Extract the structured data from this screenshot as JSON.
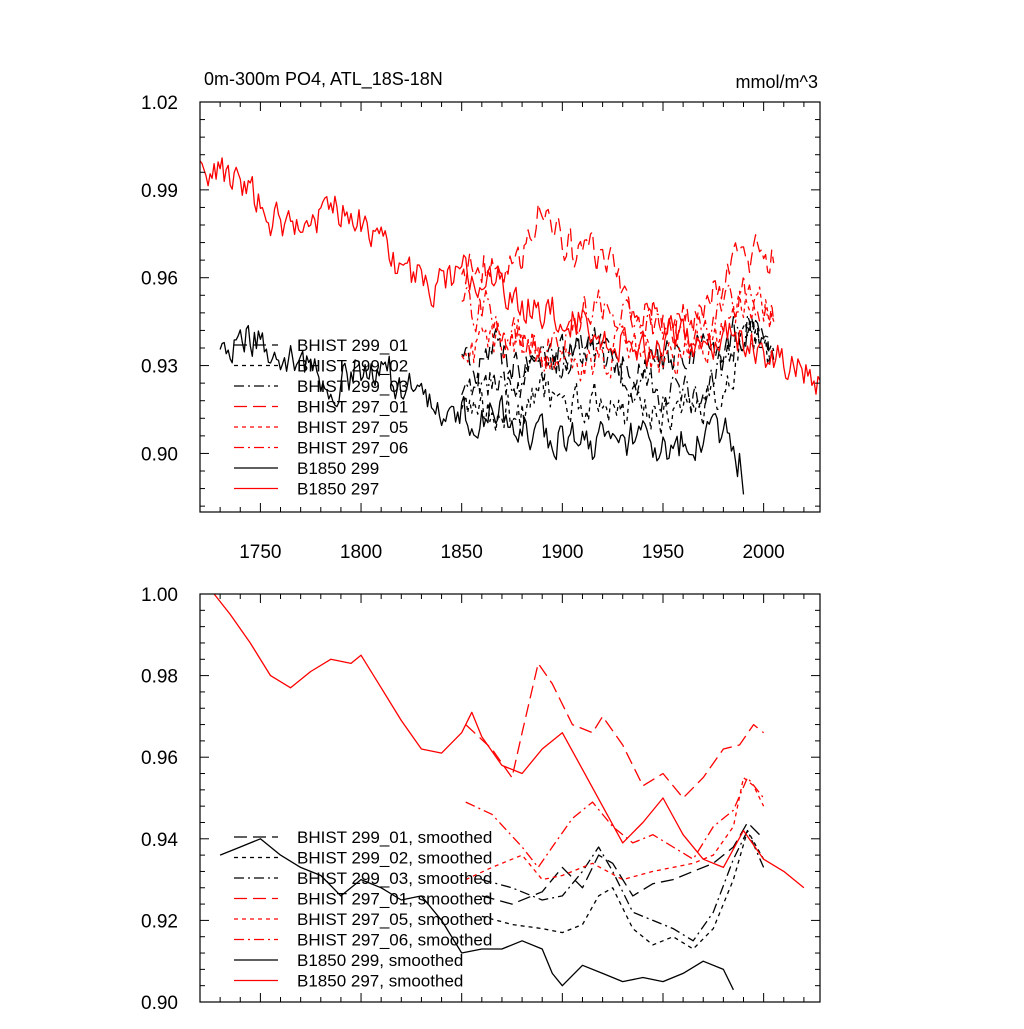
{
  "colors": {
    "black": "#000000",
    "red": "#ff0000"
  },
  "chart_data": [
    {
      "type": "line",
      "title": "0m-300m PO4, ATL_18S-18N",
      "units": "mmol/m^3",
      "xlabel": "",
      "ylabel": "",
      "xlim": [
        1720,
        2028
      ],
      "ylim": [
        0.88,
        1.02
      ],
      "xticks": [
        1750,
        1800,
        1850,
        1900,
        1950,
        2000
      ],
      "xtick_labels": [
        "1750",
        "1800",
        "1850",
        "1900",
        "1950",
        "2000"
      ],
      "yticks": [
        0.9,
        0.93,
        0.96,
        0.99,
        1.02
      ],
      "ytick_labels": [
        "0.90",
        "0.93",
        "0.96",
        "0.99",
        "1.02"
      ],
      "legend_position": "bottom-left",
      "series": [
        {
          "name": "BHIST 299_01",
          "color": "#000000",
          "dash": "long-dash",
          "noise": 0.006,
          "x": [
            1850,
            1865,
            1880,
            1890,
            1900,
            1915,
            1930,
            1945,
            1960,
            1975,
            1985,
            1992,
            2005
          ],
          "values": [
            0.928,
            0.935,
            0.93,
            0.927,
            0.932,
            0.938,
            0.93,
            0.932,
            0.934,
            0.935,
            0.94,
            0.945,
            0.935
          ]
        },
        {
          "name": "BHIST 299_02",
          "color": "#000000",
          "dash": "short-dash",
          "noise": 0.006,
          "x": [
            1850,
            1865,
            1880,
            1890,
            1900,
            1915,
            1930,
            1945,
            1960,
            1975,
            1985,
            1992,
            2005
          ],
          "values": [
            0.918,
            0.912,
            0.914,
            0.92,
            0.918,
            0.917,
            0.915,
            0.913,
            0.912,
            0.92,
            0.93,
            0.942,
            0.932
          ]
        },
        {
          "name": "BHIST 299_03",
          "color": "#000000",
          "dash": "dash-dot",
          "noise": 0.006,
          "x": [
            1850,
            1865,
            1880,
            1890,
            1900,
            1915,
            1930,
            1945,
            1960,
            1975,
            1985,
            1992,
            2005
          ],
          "values": [
            0.922,
            0.925,
            0.924,
            0.93,
            0.93,
            0.935,
            0.925,
            0.922,
            0.918,
            0.925,
            0.935,
            0.945,
            0.932
          ]
        },
        {
          "name": "BHIST 297_01",
          "color": "#ff0000",
          "dash": "long-dash",
          "noise": 0.006,
          "x": [
            1850,
            1860,
            1870,
            1880,
            1888,
            1895,
            1905,
            1915,
            1925,
            1935,
            1945,
            1955,
            1965,
            1975,
            1985,
            1992,
            2005
          ],
          "values": [
            0.962,
            0.965,
            0.96,
            0.965,
            0.985,
            0.98,
            0.97,
            0.97,
            0.965,
            0.95,
            0.95,
            0.945,
            0.948,
            0.955,
            0.965,
            0.968,
            0.965
          ]
        },
        {
          "name": "BHIST 297_05",
          "color": "#ff0000",
          "dash": "short-dash",
          "noise": 0.006,
          "x": [
            1850,
            1865,
            1880,
            1890,
            1900,
            1915,
            1930,
            1945,
            1960,
            1975,
            1985,
            1992,
            2005
          ],
          "values": [
            0.932,
            0.937,
            0.94,
            0.935,
            0.93,
            0.932,
            0.935,
            0.932,
            0.935,
            0.938,
            0.945,
            0.955,
            0.945
          ]
        },
        {
          "name": "BHIST 297_06",
          "color": "#ff0000",
          "dash": "dash-dot",
          "noise": 0.006,
          "x": [
            1850,
            1865,
            1880,
            1890,
            1900,
            1915,
            1930,
            1945,
            1960,
            1975,
            1985,
            1992,
            2005
          ],
          "values": [
            0.952,
            0.948,
            0.938,
            0.935,
            0.94,
            0.95,
            0.948,
            0.942,
            0.94,
            0.945,
            0.95,
            0.955,
            0.945
          ]
        },
        {
          "name": "B1850 299",
          "color": "#000000",
          "dash": "solid",
          "noise": 0.006,
          "x": [
            1730,
            1745,
            1760,
            1775,
            1790,
            1805,
            1820,
            1835,
            1845,
            1860,
            1875,
            1885,
            1895,
            1910,
            1925,
            1940,
            1955,
            1970,
            1982,
            1988,
            1990
          ],
          "values": [
            0.935,
            0.94,
            0.935,
            0.928,
            0.925,
            0.93,
            0.925,
            0.92,
            0.912,
            0.915,
            0.912,
            0.908,
            0.905,
            0.904,
            0.903,
            0.905,
            0.902,
            0.906,
            0.905,
            0.898,
            0.886
          ]
        },
        {
          "name": "B1850 297",
          "color": "#ff0000",
          "dash": "solid",
          "noise": 0.0055,
          "x": [
            1720,
            1730,
            1745,
            1760,
            1775,
            1790,
            1805,
            1820,
            1835,
            1850,
            1865,
            1880,
            1895,
            1910,
            1925,
            1940,
            1955,
            1970,
            1985,
            2000,
            2015,
            2028
          ],
          "values": [
            1.0,
            0.997,
            0.988,
            0.978,
            0.98,
            0.983,
            0.976,
            0.962,
            0.958,
            0.962,
            0.96,
            0.95,
            0.95,
            0.945,
            0.94,
            0.935,
            0.94,
            0.937,
            0.94,
            0.935,
            0.932,
            0.925
          ]
        }
      ]
    },
    {
      "type": "line",
      "title": "",
      "xlabel": "",
      "ylabel": "",
      "xlim": [
        1720,
        2028
      ],
      "ylim": [
        0.9,
        1.0
      ],
      "xticks": [
        1750,
        1800,
        1850,
        1900,
        1950,
        2000
      ],
      "xtick_labels": [],
      "yticks": [
        0.9,
        0.92,
        0.94,
        0.96,
        0.98,
        1.0
      ],
      "ytick_labels": [
        "0.90",
        "0.92",
        "0.94",
        "0.96",
        "0.98",
        "1.00"
      ],
      "legend_position": "bottom-left",
      "series": [
        {
          "name": "BHIST 299_01, smoothed",
          "color": "#000000",
          "dash": "long-dash",
          "noise": 0,
          "x": [
            1860,
            1875,
            1890,
            1900,
            1910,
            1918,
            1925,
            1935,
            1945,
            1955,
            1965,
            1975,
            1985,
            1992,
            2000
          ],
          "values": [
            0.926,
            0.924,
            0.927,
            0.933,
            0.928,
            0.936,
            0.934,
            0.926,
            0.929,
            0.93,
            0.932,
            0.934,
            0.938,
            0.944,
            0.94
          ]
        },
        {
          "name": "BHIST 299_02, smoothed",
          "color": "#000000",
          "dash": "short-dash",
          "noise": 0,
          "x": [
            1860,
            1875,
            1890,
            1900,
            1910,
            1918,
            1925,
            1935,
            1945,
            1955,
            1965,
            1975,
            1985,
            1992,
            2000
          ],
          "values": [
            0.921,
            0.919,
            0.918,
            0.917,
            0.919,
            0.926,
            0.928,
            0.918,
            0.914,
            0.916,
            0.913,
            0.918,
            0.93,
            0.942,
            0.935
          ]
        },
        {
          "name": "BHIST 299_03, smoothed",
          "color": "#000000",
          "dash": "dash-dot",
          "noise": 0,
          "x": [
            1860,
            1875,
            1890,
            1900,
            1910,
            1918,
            1925,
            1935,
            1945,
            1955,
            1965,
            1975,
            1985,
            1992,
            2000
          ],
          "values": [
            0.93,
            0.928,
            0.925,
            0.926,
            0.932,
            0.938,
            0.932,
            0.922,
            0.92,
            0.918,
            0.915,
            0.922,
            0.935,
            0.942,
            0.933
          ]
        },
        {
          "name": "BHIST 297_01, smoothed",
          "color": "#ff0000",
          "dash": "long-dash",
          "noise": 0,
          "x": [
            1852,
            1865,
            1875,
            1880,
            1888,
            1895,
            1905,
            1915,
            1920,
            1930,
            1940,
            1950,
            1960,
            1970,
            1980,
            1988,
            1995,
            2000
          ],
          "values": [
            0.968,
            0.962,
            0.955,
            0.966,
            0.983,
            0.978,
            0.968,
            0.966,
            0.97,
            0.963,
            0.953,
            0.956,
            0.95,
            0.955,
            0.962,
            0.963,
            0.968,
            0.966
          ]
        },
        {
          "name": "BHIST 297_05, smoothed",
          "color": "#ff0000",
          "dash": "short-dash",
          "noise": 0,
          "x": [
            1852,
            1865,
            1880,
            1890,
            1900,
            1915,
            1930,
            1945,
            1955,
            1965,
            1975,
            1985,
            1990,
            1995,
            2000
          ],
          "values": [
            0.93,
            0.933,
            0.936,
            0.93,
            0.931,
            0.934,
            0.93,
            0.932,
            0.933,
            0.934,
            0.936,
            0.943,
            0.955,
            0.953,
            0.948
          ]
        },
        {
          "name": "BHIST 297_06, smoothed",
          "color": "#ff0000",
          "dash": "dash-dot",
          "noise": 0,
          "x": [
            1852,
            1865,
            1880,
            1888,
            1895,
            1905,
            1915,
            1925,
            1935,
            1945,
            1955,
            1965,
            1975,
            1985,
            1992,
            2000
          ],
          "values": [
            0.949,
            0.946,
            0.938,
            0.933,
            0.938,
            0.945,
            0.949,
            0.943,
            0.939,
            0.941,
            0.938,
            0.935,
            0.943,
            0.947,
            0.955,
            0.95
          ]
        },
        {
          "name": "B1850 299, smoothed",
          "color": "#000000",
          "dash": "solid",
          "noise": 0,
          "x": [
            1730,
            1740,
            1750,
            1760,
            1770,
            1780,
            1790,
            1800,
            1810,
            1820,
            1830,
            1840,
            1850,
            1860,
            1870,
            1880,
            1890,
            1895,
            1900,
            1910,
            1920,
            1930,
            1940,
            1950,
            1960,
            1970,
            1980,
            1985
          ],
          "values": [
            0.936,
            0.938,
            0.94,
            0.936,
            0.933,
            0.931,
            0.926,
            0.93,
            0.928,
            0.925,
            0.926,
            0.92,
            0.912,
            0.913,
            0.913,
            0.915,
            0.913,
            0.907,
            0.904,
            0.909,
            0.907,
            0.905,
            0.906,
            0.905,
            0.907,
            0.91,
            0.908,
            0.903
          ]
        },
        {
          "name": "B1850 297, smoothed",
          "color": "#ff0000",
          "dash": "solid",
          "noise": 0,
          "x": [
            1727,
            1735,
            1745,
            1755,
            1765,
            1775,
            1785,
            1795,
            1800,
            1810,
            1820,
            1830,
            1840,
            1850,
            1855,
            1860,
            1870,
            1880,
            1890,
            1900,
            1910,
            1920,
            1930,
            1940,
            1950,
            1960,
            1970,
            1980,
            1990,
            2000,
            2010,
            2020
          ],
          "values": [
            1.0,
            0.995,
            0.988,
            0.98,
            0.977,
            0.981,
            0.984,
            0.983,
            0.985,
            0.977,
            0.969,
            0.962,
            0.961,
            0.966,
            0.971,
            0.965,
            0.958,
            0.956,
            0.962,
            0.966,
            0.957,
            0.948,
            0.939,
            0.944,
            0.95,
            0.941,
            0.935,
            0.933,
            0.942,
            0.935,
            0.932,
            0.928
          ]
        }
      ]
    }
  ]
}
